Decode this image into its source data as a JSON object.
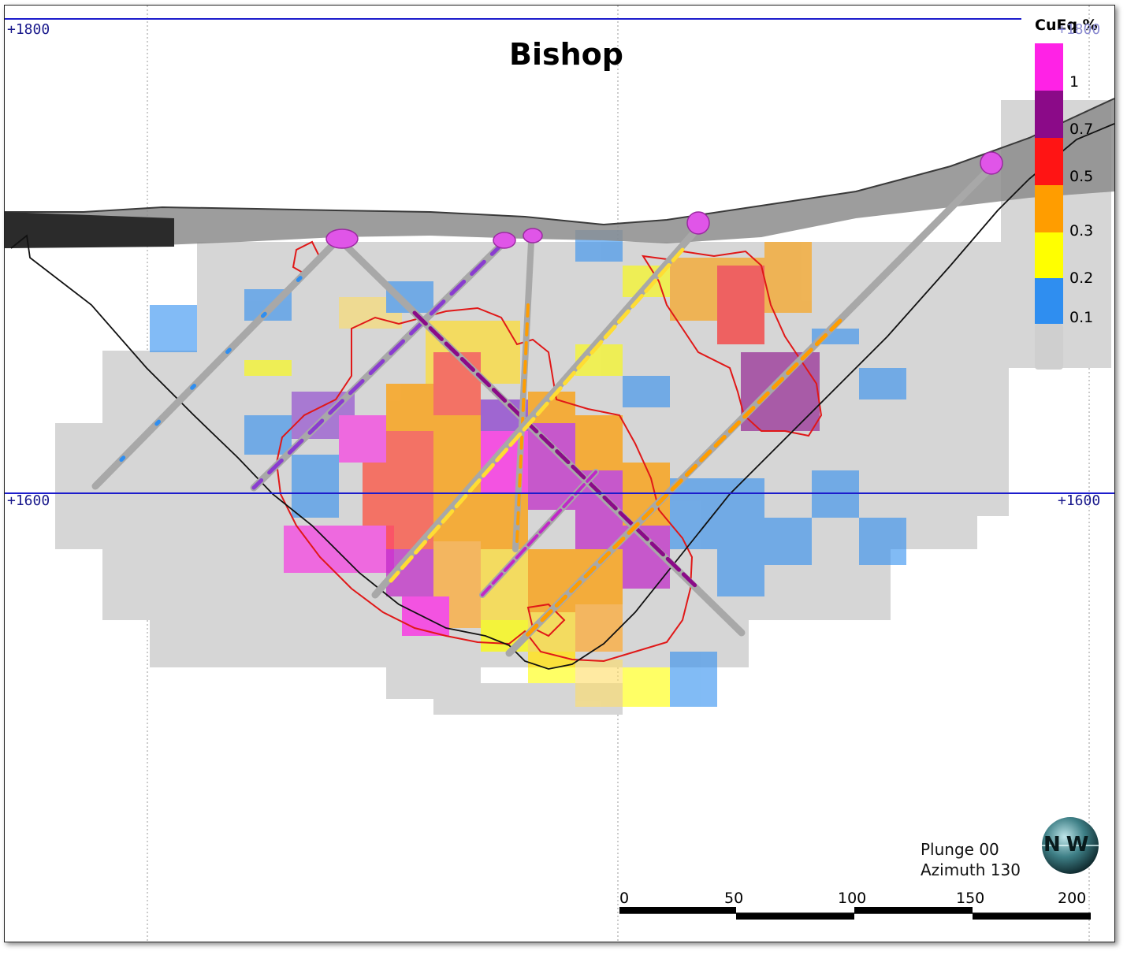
{
  "title": "Bishop",
  "legend": {
    "title": "CuEq %",
    "colors": [
      "#ff22e6",
      "#8b0a88",
      "#ff1414",
      "#ff9d00",
      "#ffff00",
      "#2f8ef0",
      "#cfcfcf"
    ],
    "labels": [
      "1",
      "0.7",
      "0.5",
      "0.3",
      "0.2",
      "0.1"
    ]
  },
  "elevations": {
    "top_left": "+1800",
    "top_right": "+1800",
    "mid_left": "+1600",
    "mid_right": "+1600"
  },
  "view": {
    "plunge": "Plunge 00",
    "azimuth": "Azimuth 130"
  },
  "compass": {
    "letters": "N W",
    "icon": "compass-globe-icon"
  },
  "scale_bar": {
    "labels": [
      "0",
      "50",
      "100",
      "150",
      "200"
    ]
  },
  "colors": {
    "elevation_line": "#1c1ccc",
    "grid_line": "#9a9a9a",
    "shell_outline": "#e01818",
    "pit_outline": "#111111",
    "collar": "#e055e8"
  }
}
